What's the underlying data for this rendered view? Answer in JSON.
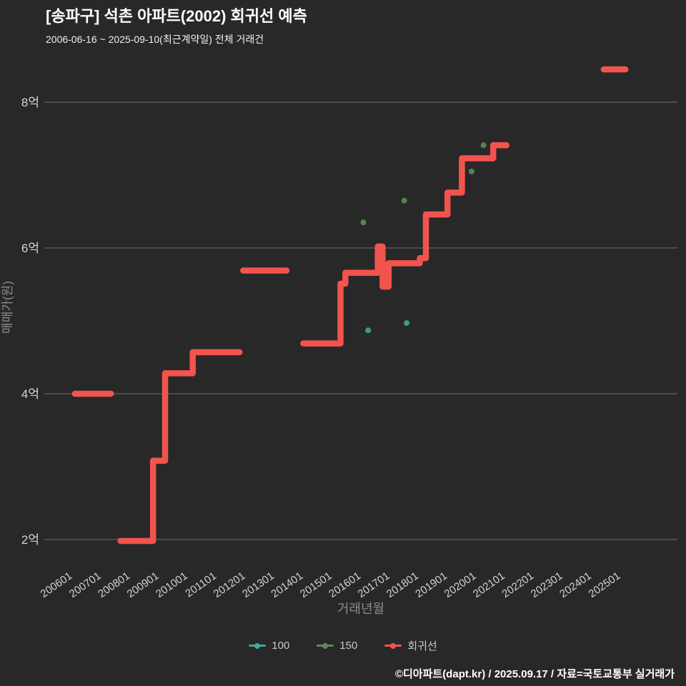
{
  "header": {
    "title": "[송파구] 석촌 아파트(2002) 회귀선 예측",
    "subtitle": "2006-06-16 ~ 2025-09-10(최근계약일) 전체 거래건"
  },
  "footer": {
    "credit": "©디아파트(dapt.kr) / 2025.09.17 / 자료=국토교통부 실거래가"
  },
  "colors": {
    "background": "#282828",
    "title_text": "#ffffff",
    "grid": "#6e6e6e",
    "tick_label": "#d4d4d4",
    "axis_label": "#8c8c8c",
    "legend_text": "#c8c8c8",
    "footer_text": "#ffffff",
    "regression": "#f2544d",
    "series_100": "#3fa69b",
    "series_150": "#5e8c58"
  },
  "chart_data": {
    "type": "line",
    "title": "[송파구] 석촌 아파트(2002) 회귀선 예측",
    "subtitle": "2006-06-16 ~ 2025-09-10(최근계약일) 전체 거래건",
    "xlabel": "거래년월",
    "ylabel": "매매가(원)",
    "y_unit": "억원",
    "x_unit": "months since 2006-01",
    "grid": "horizontal-only",
    "legend_position": "bottom-center",
    "x_ticks": [
      "200601",
      "200701",
      "200801",
      "200901",
      "201001",
      "201101",
      "201201",
      "201301",
      "201401",
      "201501",
      "201601",
      "201701",
      "201801",
      "201901",
      "202001",
      "202101",
      "202201",
      "202301",
      "202401",
      "202501"
    ],
    "y_ticks": [
      {
        "value": 2,
        "label": "2억"
      },
      {
        "value": 4,
        "label": "4억"
      },
      {
        "value": 6,
        "label": "6억"
      },
      {
        "value": 8,
        "label": "8억"
      }
    ],
    "xlim_months": [
      -8,
      240
    ],
    "ylim": [
      1.6,
      8.85
    ],
    "series": [
      {
        "name": "100",
        "type": "scatter",
        "color": "#3fa69b",
        "points": [
          [
            127,
            4.87
          ],
          [
            143,
            4.97
          ]
        ]
      },
      {
        "name": "150",
        "type": "scatter",
        "color": "#5e8c58",
        "points": [
          [
            125,
            6.35
          ],
          [
            142,
            6.65
          ],
          [
            170,
            7.05
          ],
          [
            175,
            7.41
          ]
        ]
      },
      {
        "name": "회귀선",
        "type": "line",
        "color": "#f2544d",
        "segments": [
          [
            [
              5,
              4.0
            ],
            [
              20,
              4.0
            ]
          ],
          [
            [
              24,
              1.98
            ],
            [
              37.5,
              1.98
            ],
            [
              37.5,
              3.08
            ],
            [
              42.5,
              3.08
            ],
            [
              42.5,
              4.28
            ],
            [
              54,
              4.28
            ],
            [
              54,
              4.57
            ],
            [
              73.5,
              4.57
            ]
          ],
          [
            [
              75,
              5.69
            ],
            [
              93,
              5.69
            ]
          ],
          [
            [
              100,
              4.69
            ],
            [
              115.5,
              4.69
            ],
            [
              115.5,
              5.51
            ],
            [
              117.5,
              5.51
            ],
            [
              117.5,
              5.66
            ],
            [
              131,
              5.66
            ],
            [
              131,
              6.02
            ],
            [
              133,
              6.02
            ],
            [
              133,
              5.47
            ],
            [
              135.5,
              5.47
            ],
            [
              135.5,
              5.79
            ],
            [
              148.5,
              5.79
            ],
            [
              148.5,
              5.86
            ],
            [
              151,
              5.86
            ],
            [
              151,
              6.46
            ],
            [
              160,
              6.46
            ],
            [
              160,
              6.76
            ],
            [
              166,
              6.76
            ],
            [
              166,
              7.23
            ],
            [
              179,
              7.23
            ],
            [
              179,
              7.41
            ],
            [
              184.5,
              7.41
            ]
          ],
          [
            [
              225,
              8.45
            ],
            [
              234,
              8.45
            ]
          ]
        ]
      }
    ],
    "legend": [
      {
        "label": "100",
        "color": "#3fa69b"
      },
      {
        "label": "150",
        "color": "#5e8c58"
      },
      {
        "label": "회귀선",
        "color": "#f2544d"
      }
    ]
  }
}
